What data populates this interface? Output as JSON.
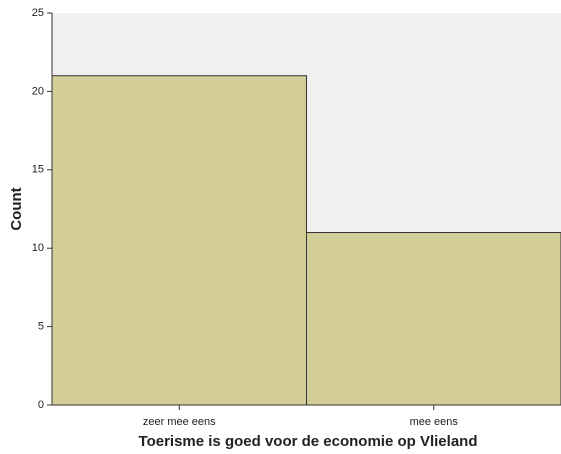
{
  "chart_data": {
    "type": "bar",
    "x_label": "Toerisme is goed voor de economie op Vlieland",
    "y_label": "Count",
    "categories": [
      "zeer mee eens",
      "mee eens"
    ],
    "values": [
      21,
      11
    ],
    "color": "#d3ce97",
    "ylim": [
      0,
      25
    ],
    "yticks": [
      0,
      5,
      10,
      15,
      20,
      25
    ],
    "grid": false
  }
}
